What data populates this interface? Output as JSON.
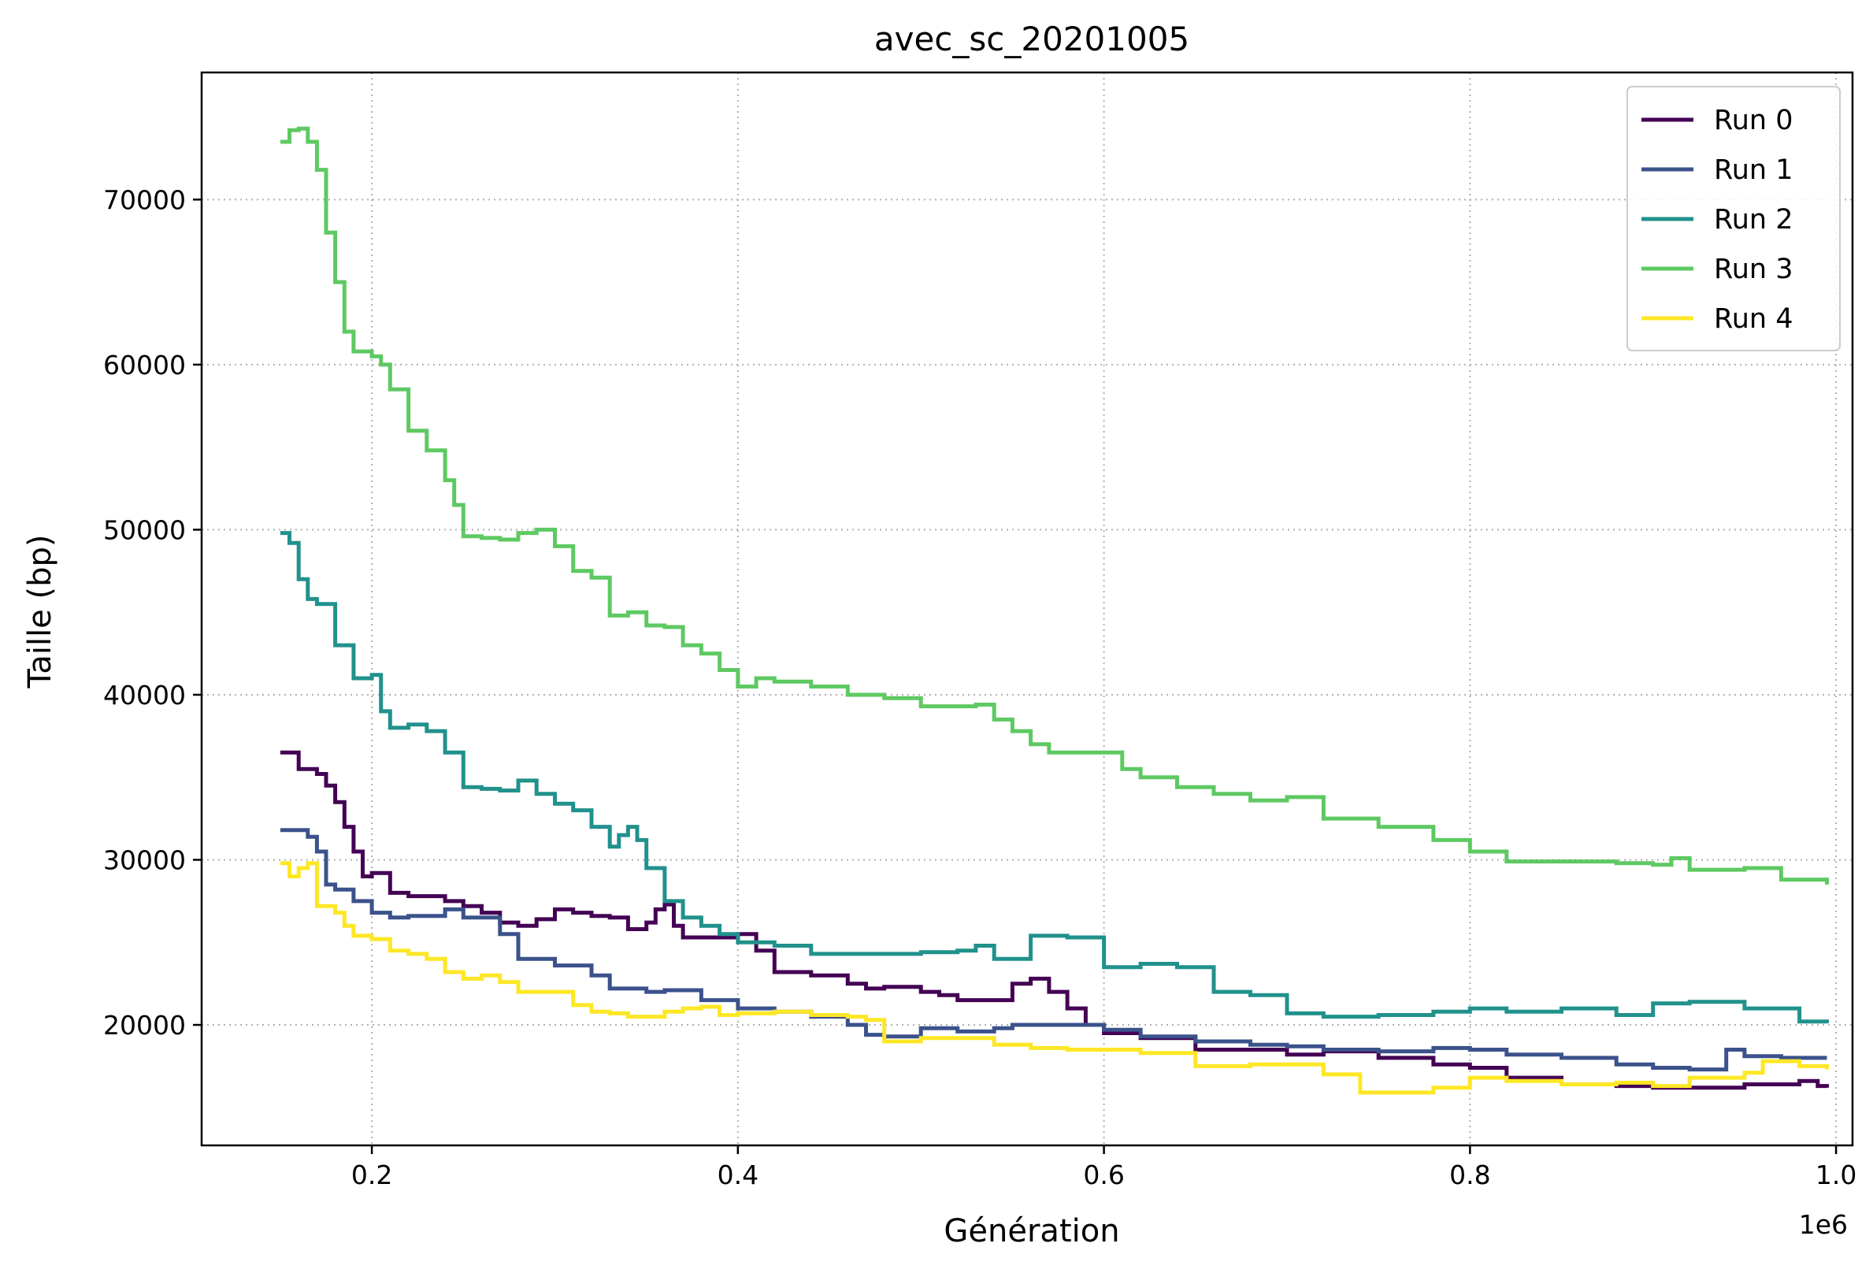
{
  "chart_data": {
    "type": "line",
    "title": "avec_sc_20201005",
    "xlabel": "Génération",
    "ylabel": "Taille (bp)",
    "x_offset_label": "1e6",
    "xlim": [
      0.107,
      1.009
    ],
    "ylim": [
      12700,
      77700
    ],
    "xticks": [
      0.2,
      0.4,
      0.6,
      0.8,
      1.0
    ],
    "xtick_labels": [
      "0.2",
      "0.4",
      "0.6",
      "0.8",
      "1.0"
    ],
    "yticks": [
      20000,
      30000,
      40000,
      50000,
      60000,
      70000
    ],
    "ytick_labels": [
      "20000",
      "30000",
      "40000",
      "50000",
      "60000",
      "70000"
    ],
    "grid": true,
    "grid_style": "dotted",
    "legend_position": "top-right",
    "step": true,
    "series": [
      {
        "name": "Run 0",
        "color": "#440154",
        "x": [
          0.15,
          0.16,
          0.17,
          0.175,
          0.18,
          0.185,
          0.19,
          0.195,
          0.2,
          0.21,
          0.22,
          0.24,
          0.25,
          0.26,
          0.27,
          0.28,
          0.29,
          0.3,
          0.31,
          0.32,
          0.33,
          0.34,
          0.35,
          0.355,
          0.36,
          0.365,
          0.37,
          0.38,
          0.4,
          0.41,
          0.42,
          0.44,
          0.46,
          0.47,
          0.48,
          0.5,
          0.51,
          0.52,
          0.53,
          0.54,
          0.55,
          0.56,
          0.57,
          0.58,
          0.59,
          0.6,
          0.62,
          0.65,
          0.68,
          0.7,
          0.72,
          0.75,
          0.78,
          0.8,
          0.82,
          0.85,
          0.88,
          0.9,
          0.92,
          0.95,
          0.98,
          0.99,
          0.995
        ],
        "y": [
          36500,
          35500,
          35200,
          34500,
          33500,
          32000,
          30500,
          29000,
          29200,
          28000,
          27800,
          27500,
          27200,
          26800,
          26200,
          26000,
          26400,
          27000,
          26800,
          26600,
          26500,
          25800,
          26200,
          27000,
          27300,
          26000,
          25300,
          25300,
          25500,
          24500,
          23200,
          23000,
          22500,
          22200,
          22300,
          22000,
          21800,
          21500,
          21500,
          21500,
          22500,
          22800,
          22000,
          21000,
          20000,
          19500,
          19200,
          18500,
          18500,
          18200,
          18400,
          18000,
          17600,
          17400,
          16800,
          16400,
          16300,
          16200,
          16200,
          16400,
          16600,
          16300,
          16200
        ]
      },
      {
        "name": "Run 1",
        "color": "#3b528b",
        "x": [
          0.15,
          0.16,
          0.165,
          0.17,
          0.175,
          0.18,
          0.19,
          0.2,
          0.21,
          0.22,
          0.24,
          0.25,
          0.27,
          0.28,
          0.3,
          0.32,
          0.33,
          0.35,
          0.36,
          0.38,
          0.4,
          0.42,
          0.44,
          0.46,
          0.47,
          0.48,
          0.5,
          0.52,
          0.54,
          0.55,
          0.57,
          0.58,
          0.6,
          0.62,
          0.65,
          0.68,
          0.7,
          0.72,
          0.75,
          0.78,
          0.8,
          0.82,
          0.85,
          0.88,
          0.9,
          0.92,
          0.94,
          0.95,
          0.97,
          0.995
        ],
        "y": [
          31800,
          31800,
          31400,
          30500,
          28500,
          28200,
          27500,
          26800,
          26500,
          26600,
          27000,
          26500,
          25500,
          24000,
          23600,
          23000,
          22200,
          22000,
          22100,
          21500,
          21000,
          20800,
          20500,
          20000,
          19400,
          19300,
          19800,
          19600,
          19800,
          20000,
          20000,
          20000,
          19700,
          19300,
          19000,
          18800,
          18700,
          18500,
          18400,
          18600,
          18500,
          18200,
          18000,
          17600,
          17400,
          17300,
          18500,
          18100,
          18000,
          18000
        ]
      },
      {
        "name": "Run 2",
        "color": "#21918c",
        "x": [
          0.15,
          0.155,
          0.16,
          0.165,
          0.17,
          0.18,
          0.19,
          0.2,
          0.205,
          0.21,
          0.22,
          0.23,
          0.24,
          0.25,
          0.26,
          0.27,
          0.28,
          0.29,
          0.3,
          0.31,
          0.32,
          0.33,
          0.335,
          0.34,
          0.345,
          0.35,
          0.36,
          0.37,
          0.38,
          0.39,
          0.4,
          0.42,
          0.44,
          0.46,
          0.48,
          0.5,
          0.52,
          0.53,
          0.54,
          0.55,
          0.56,
          0.57,
          0.58,
          0.6,
          0.62,
          0.64,
          0.66,
          0.68,
          0.7,
          0.72,
          0.75,
          0.78,
          0.8,
          0.82,
          0.85,
          0.88,
          0.9,
          0.92,
          0.95,
          0.98,
          0.995
        ],
        "y": [
          49800,
          49200,
          47000,
          45800,
          45500,
          43000,
          41000,
          41200,
          39000,
          38000,
          38200,
          37800,
          36500,
          34400,
          34300,
          34200,
          34800,
          34000,
          33400,
          33000,
          32000,
          30800,
          31500,
          32000,
          31200,
          29500,
          27500,
          26500,
          26000,
          25500,
          25000,
          24800,
          24300,
          24300,
          24300,
          24400,
          24500,
          24800,
          24000,
          24000,
          25400,
          25400,
          25300,
          23500,
          23700,
          23500,
          22000,
          21800,
          20700,
          20500,
          20600,
          20800,
          21000,
          20800,
          21000,
          20600,
          21300,
          21400,
          21000,
          20200,
          20100
        ]
      },
      {
        "name": "Run 3",
        "color": "#5ec962",
        "x": [
          0.15,
          0.155,
          0.16,
          0.165,
          0.17,
          0.175,
          0.18,
          0.185,
          0.19,
          0.2,
          0.205,
          0.21,
          0.22,
          0.23,
          0.24,
          0.245,
          0.25,
          0.26,
          0.27,
          0.28,
          0.29,
          0.3,
          0.31,
          0.32,
          0.33,
          0.34,
          0.35,
          0.36,
          0.37,
          0.38,
          0.39,
          0.4,
          0.41,
          0.42,
          0.44,
          0.46,
          0.48,
          0.5,
          0.52,
          0.53,
          0.54,
          0.55,
          0.56,
          0.57,
          0.58,
          0.6,
          0.61,
          0.62,
          0.64,
          0.66,
          0.68,
          0.7,
          0.72,
          0.75,
          0.78,
          0.8,
          0.82,
          0.85,
          0.88,
          0.9,
          0.91,
          0.92,
          0.95,
          0.97,
          0.995
        ],
        "y": [
          73500,
          74200,
          74300,
          73500,
          71800,
          68000,
          65000,
          62000,
          60800,
          60500,
          60000,
          58500,
          56000,
          54800,
          53000,
          51500,
          49600,
          49500,
          49400,
          49800,
          50000,
          49000,
          47500,
          47100,
          44800,
          45000,
          44200,
          44100,
          43000,
          42500,
          41500,
          40500,
          41000,
          40800,
          40500,
          40000,
          39800,
          39300,
          39300,
          39400,
          38500,
          37800,
          37000,
          36500,
          36500,
          36500,
          35500,
          35000,
          34400,
          34000,
          33600,
          33800,
          32500,
          32000,
          31200,
          30500,
          29900,
          29900,
          29800,
          29700,
          30100,
          29400,
          29500,
          28800,
          28500
        ]
      },
      {
        "name": "Run 4",
        "color": "#fde725",
        "x": [
          0.15,
          0.155,
          0.16,
          0.165,
          0.17,
          0.18,
          0.185,
          0.19,
          0.2,
          0.21,
          0.22,
          0.23,
          0.24,
          0.25,
          0.26,
          0.27,
          0.28,
          0.29,
          0.3,
          0.31,
          0.32,
          0.33,
          0.34,
          0.35,
          0.36,
          0.37,
          0.38,
          0.39,
          0.4,
          0.42,
          0.44,
          0.46,
          0.47,
          0.48,
          0.5,
          0.52,
          0.54,
          0.56,
          0.58,
          0.6,
          0.62,
          0.65,
          0.68,
          0.7,
          0.72,
          0.74,
          0.76,
          0.78,
          0.8,
          0.82,
          0.85,
          0.88,
          0.9,
          0.92,
          0.95,
          0.96,
          0.97,
          0.98,
          0.995
        ],
        "y": [
          29800,
          29000,
          29500,
          29800,
          27200,
          26800,
          26000,
          25400,
          25200,
          24500,
          24300,
          24000,
          23200,
          22800,
          23000,
          22600,
          22000,
          22000,
          22000,
          21200,
          20800,
          20700,
          20500,
          20500,
          20800,
          21000,
          21100,
          20600,
          20700,
          20800,
          20600,
          20500,
          20300,
          19000,
          19200,
          19200,
          18800,
          18600,
          18500,
          18500,
          18300,
          17500,
          17600,
          17600,
          17000,
          15900,
          15900,
          16200,
          16800,
          16600,
          16400,
          16500,
          16300,
          16800,
          17100,
          17800,
          17800,
          17500,
          17300
        ]
      }
    ]
  }
}
